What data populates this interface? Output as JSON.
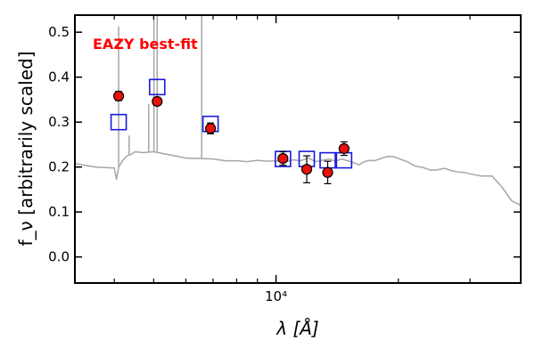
{
  "chart_data": {
    "type": "scatter",
    "title": "",
    "annotation": "EAZY best-fit",
    "xlabel": "λ [Å]",
    "ylabel": "f_ν [arbitrarily scaled]",
    "xscale": "log",
    "xlim": [
      3200,
      40000
    ],
    "ylim": [
      -0.058,
      0.538
    ],
    "yticks": [
      0.0,
      0.1,
      0.2,
      0.3,
      0.4,
      0.5
    ],
    "ytick_labels": [
      "0.0",
      "0.1",
      "0.2",
      "0.3",
      "0.4",
      "0.5"
    ],
    "xtick_major": 10000,
    "xtick_major_label": "10⁴",
    "xticks_minor": [
      4000,
      5000,
      6000,
      7000,
      8000,
      9000,
      20000,
      30000
    ],
    "grid": false,
    "colors": {
      "sed": "#a6a6a6",
      "observed_face": "#e8120c",
      "observed_edge": "#000000",
      "model_edge": "#1a1adc",
      "annotation": "#ff0000"
    },
    "series": [
      {
        "kind": "model_spectrum",
        "x": [
          3200,
          3600,
          4000,
          4050,
          4100,
          4200,
          4300,
          4400,
          4500,
          4700,
          5000,
          5500,
          6000,
          6500,
          7000,
          7500,
          8000,
          8500,
          9000,
          9500,
          10000,
          10500,
          11000,
          11500,
          12000,
          12500,
          13000,
          13500,
          14000,
          14500,
          15000,
          15500,
          16000,
          16500,
          17000,
          17500,
          18000,
          18500,
          19000,
          19500,
          20000,
          21000,
          22000,
          23000,
          24000,
          25000,
          26000,
          27000,
          28000,
          29000,
          30000,
          32000,
          34000,
          36000,
          38000,
          40000
        ],
        "y": [
          0.208,
          0.2,
          0.198,
          0.172,
          0.2,
          0.215,
          0.225,
          0.228,
          0.234,
          0.232,
          0.234,
          0.227,
          0.22,
          0.219,
          0.218,
          0.214,
          0.214,
          0.212,
          0.215,
          0.213,
          0.214,
          0.211,
          0.216,
          0.214,
          0.22,
          0.212,
          0.215,
          0.218,
          0.213,
          0.218,
          0.214,
          0.21,
          0.205,
          0.212,
          0.215,
          0.214,
          0.218,
          0.222,
          0.224,
          0.223,
          0.219,
          0.212,
          0.202,
          0.199,
          0.193,
          0.194,
          0.197,
          0.192,
          0.189,
          0.188,
          0.185,
          0.18,
          0.18,
          0.155,
          0.125,
          0.115
        ],
        "emission_lines": [
          {
            "x": 4100,
            "y": 0.513
          },
          {
            "x": 4350,
            "y": 0.27
          },
          {
            "x": 4860,
            "y": 0.34
          },
          {
            "x": 5007,
            "y": 0.538
          },
          {
            "x": 5100,
            "y": 0.538
          },
          {
            "x": 6563,
            "y": 0.538
          }
        ]
      },
      {
        "kind": "model_photometry",
        "x": [
          4100,
          5100,
          6900,
          10400,
          11900,
          13400,
          14700
        ],
        "y": [
          0.3,
          0.378,
          0.296,
          0.218,
          0.218,
          0.215,
          0.215
        ]
      },
      {
        "kind": "observed_photometry",
        "x": [
          4100,
          5100,
          6900,
          10400,
          11900,
          13400,
          14700
        ],
        "y": [
          0.358,
          0.346,
          0.286,
          0.219,
          0.195,
          0.188,
          0.241
        ],
        "yerr": [
          0.01,
          0.008,
          0.012,
          0.015,
          0.03,
          0.025,
          0.015
        ]
      }
    ]
  }
}
